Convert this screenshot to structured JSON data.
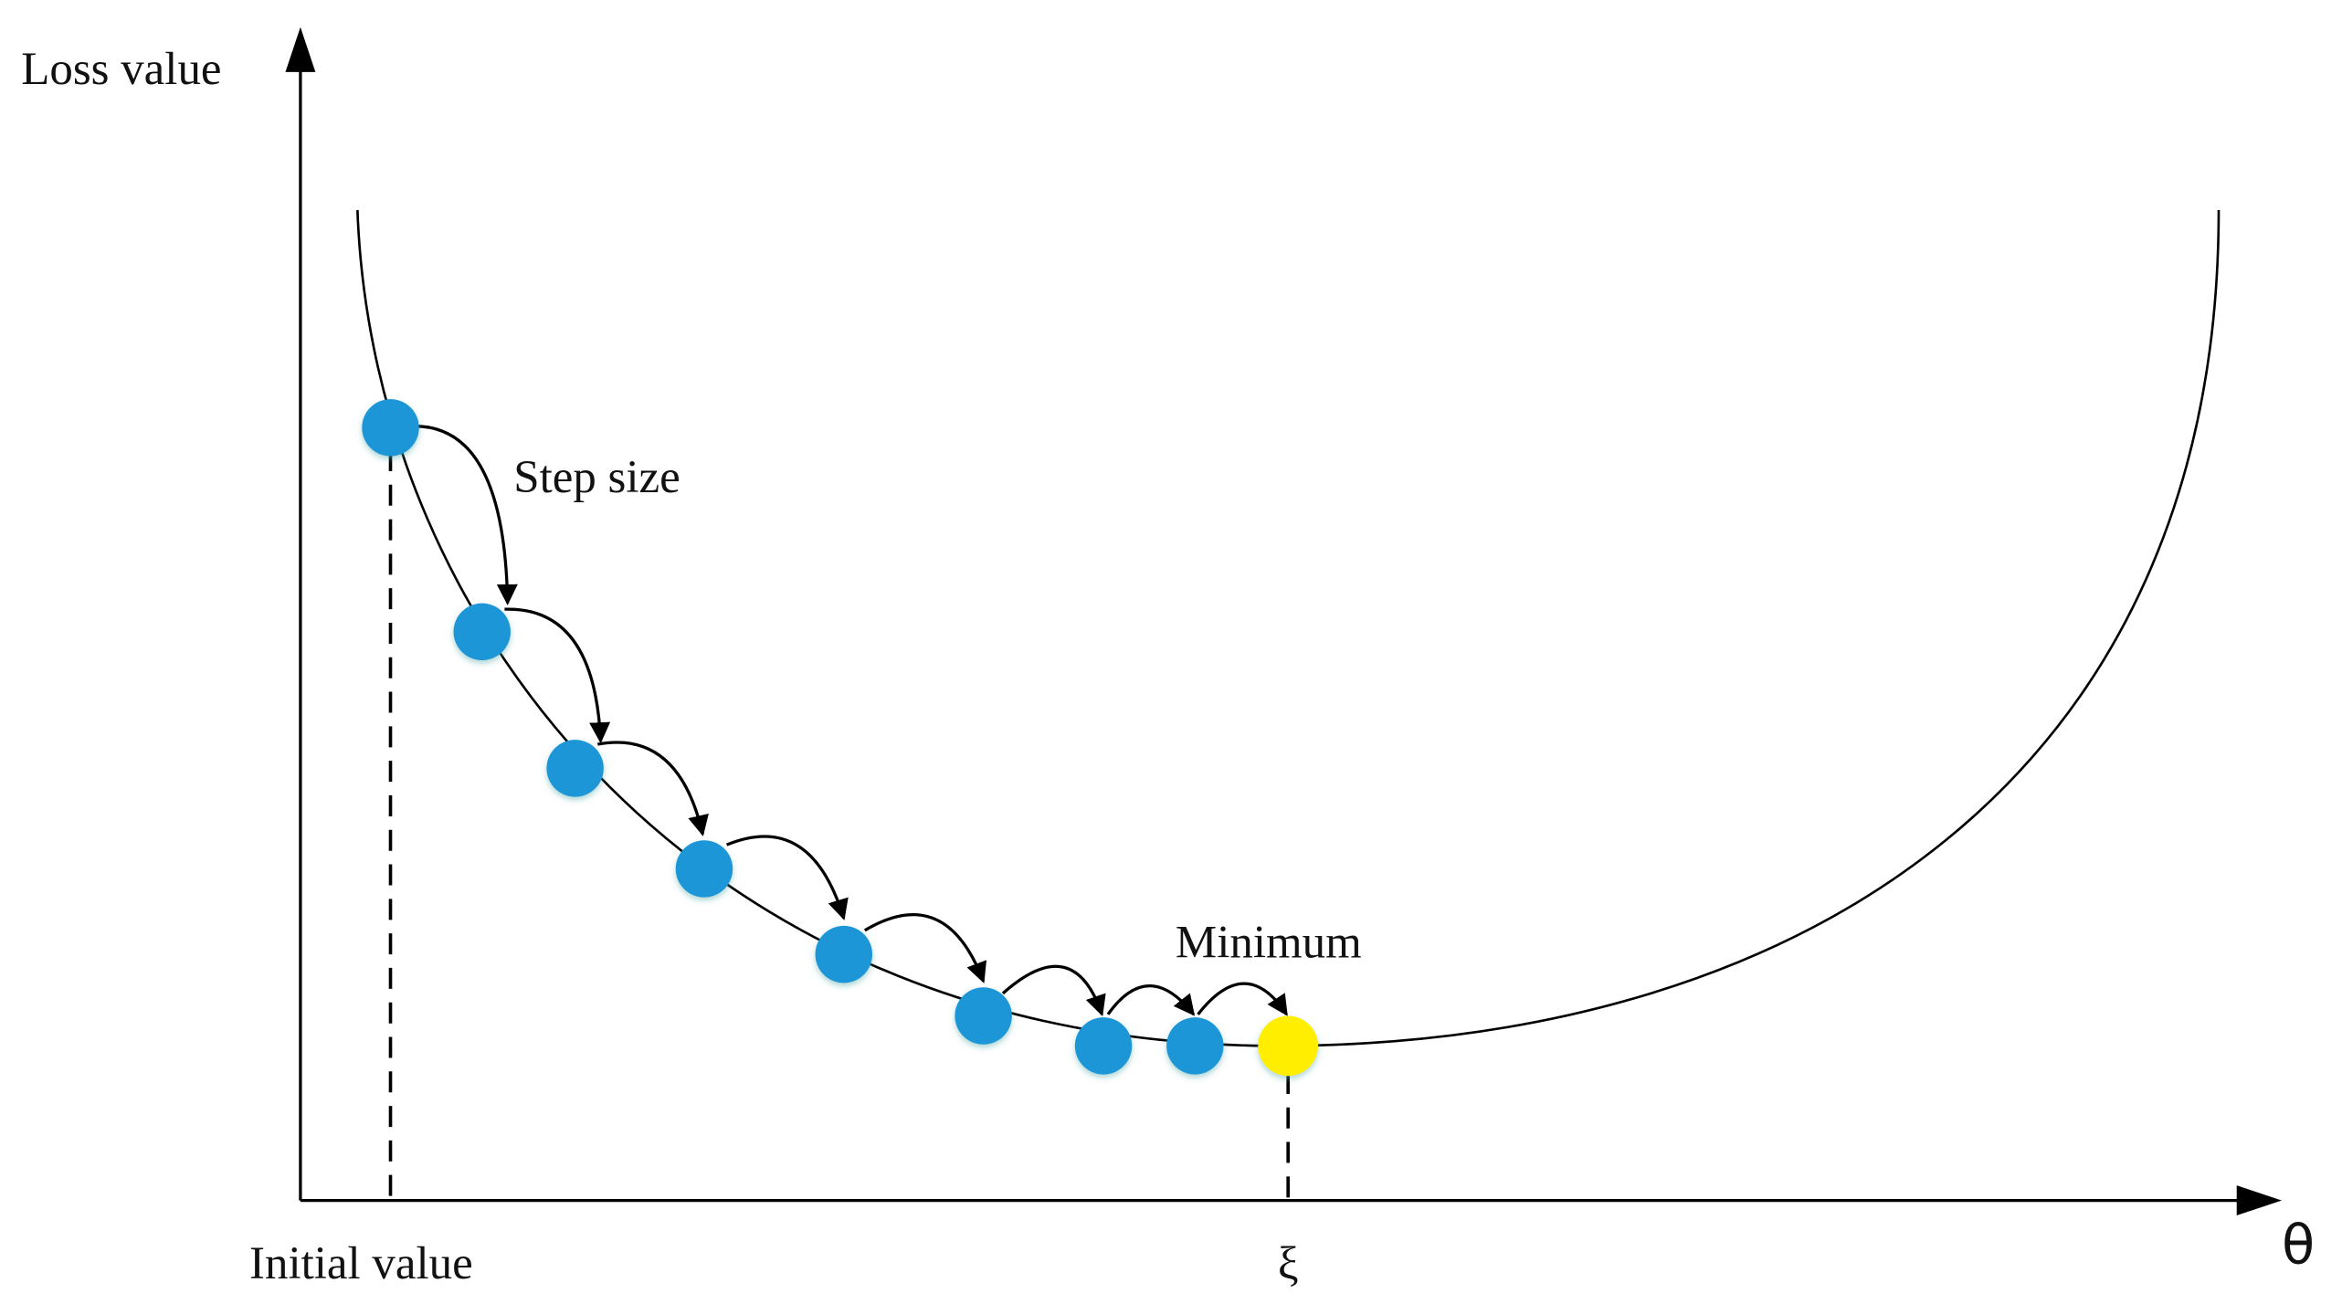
{
  "labels": {
    "y_axis": "Loss value",
    "x_axis": "θ",
    "step_size": "Step size",
    "minimum": "Minimum",
    "initial_value": "Initial value",
    "minimum_point": "ξ"
  }
}
